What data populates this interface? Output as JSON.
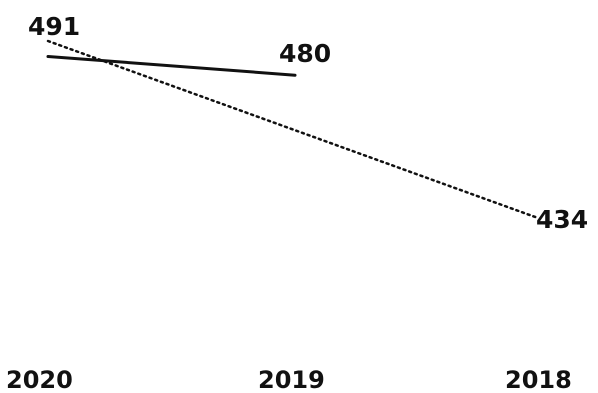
{
  "chart_data": {
    "type": "line",
    "categories": [
      "2020",
      "2019",
      "2018"
    ],
    "series": [
      {
        "values": [
          491,
          434
        ],
        "x": [
          "2020",
          "2018"
        ],
        "style": "dotted",
        "color": "#111111"
      },
      {
        "values": [
          486,
          480
        ],
        "x": [
          "2020",
          "2019"
        ],
        "style": "solid",
        "color": "#111111"
      }
    ],
    "data_labels": [
      {
        "x": "2020",
        "value": 491,
        "text": "491"
      },
      {
        "x": "2019",
        "value": 480,
        "text": "480"
      },
      {
        "x": "2018",
        "value": 434,
        "text": "434"
      }
    ],
    "title": "",
    "xlabel": "",
    "ylabel": "",
    "ylim": [
      360,
      500
    ],
    "grid": false,
    "legend": "none"
  }
}
